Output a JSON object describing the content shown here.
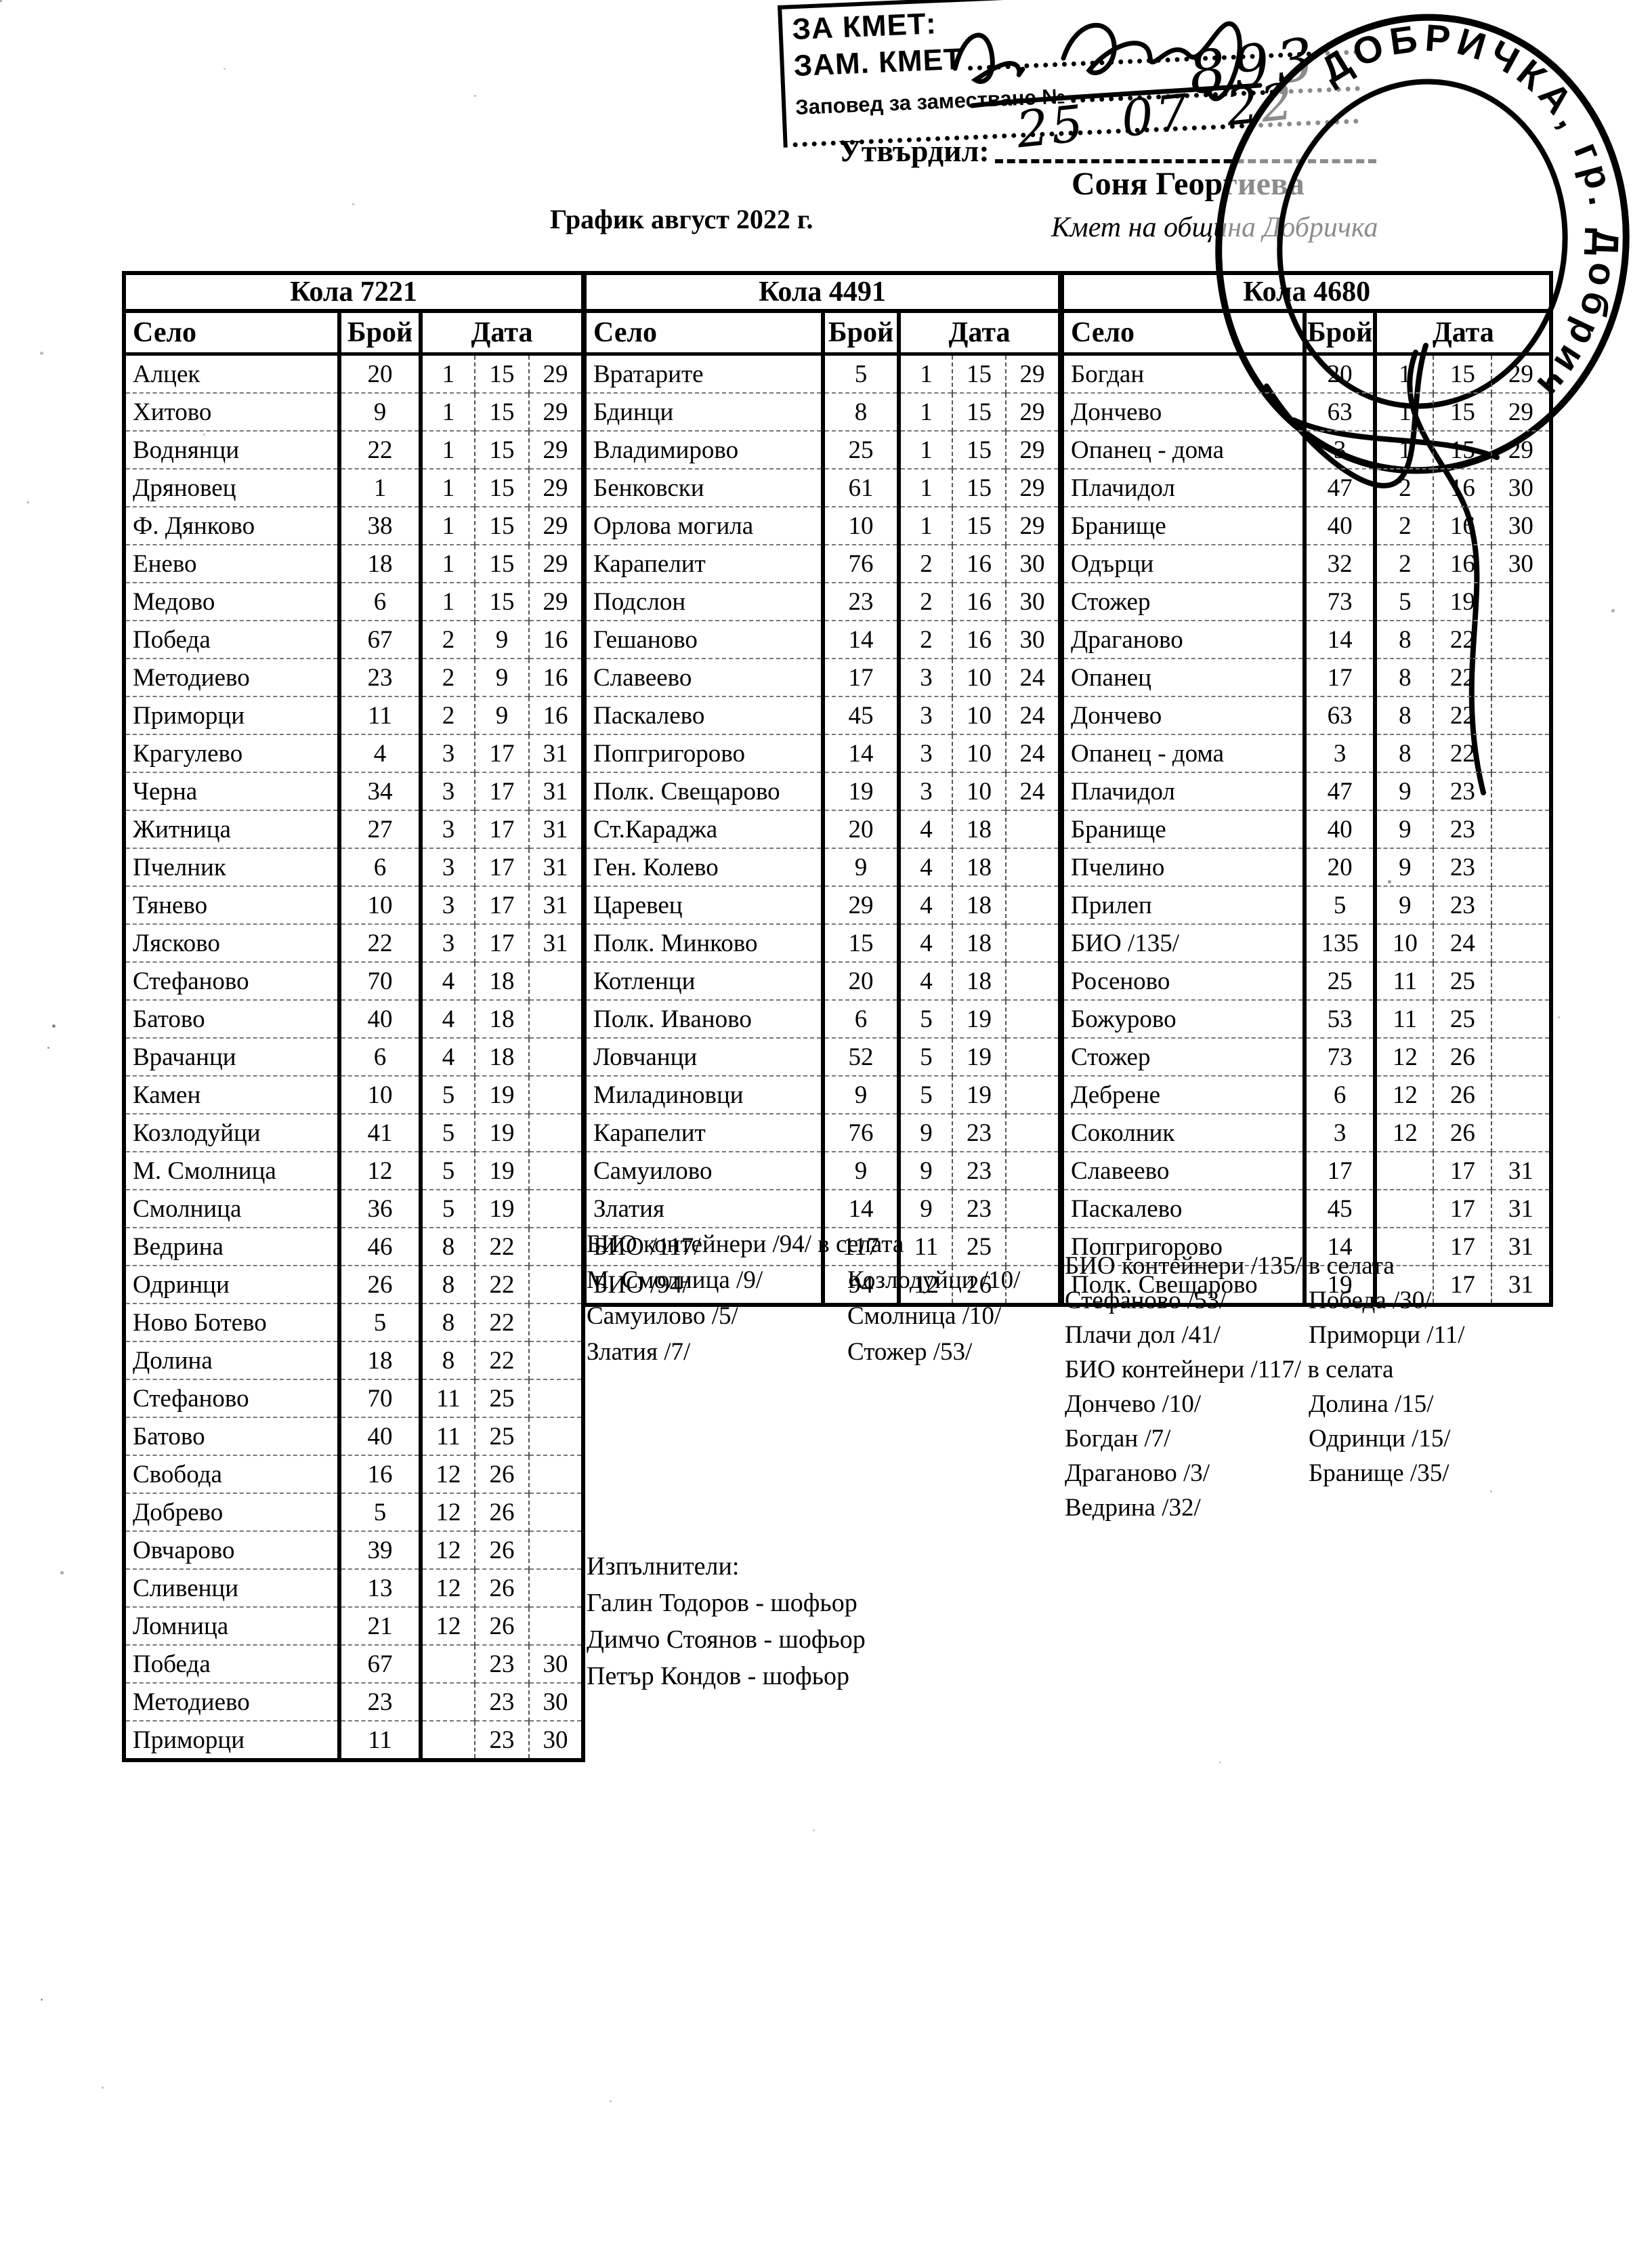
{
  "page": {
    "title": "График август 2022 г."
  },
  "approval": {
    "stamp_box": {
      "line1": "ЗА КМЕТ:",
      "line2": "ЗАМ. КМЕТ",
      "line3": "Заповед за заместване №",
      "handwritten_number": "893",
      "handwritten_date": "25 07 22"
    },
    "utvardil_label": "Утвърдил:",
    "approver_name": "Соня Георгиева",
    "approver_title": "Кмет  на община Добричка",
    "round_stamp_text": "ДОБРИЧКА, гр. Добрич"
  },
  "table_headers": {
    "village": "Село",
    "count": "Брой",
    "date": "Дата"
  },
  "tables": [
    {
      "name": "Кола 7221",
      "rows": [
        [
          "Алцек",
          "20",
          "1",
          "15",
          "29"
        ],
        [
          "Хитово",
          "9",
          "1",
          "15",
          "29"
        ],
        [
          "Воднянци",
          "22",
          "1",
          "15",
          "29"
        ],
        [
          "Дряновец",
          "1",
          "1",
          "15",
          "29"
        ],
        [
          "Ф. Дянково",
          "38",
          "1",
          "15",
          "29"
        ],
        [
          "Енево",
          "18",
          "1",
          "15",
          "29"
        ],
        [
          "Медово",
          "6",
          "1",
          "15",
          "29"
        ],
        [
          "Победа",
          "67",
          "2",
          "9",
          "16"
        ],
        [
          "Методиево",
          "23",
          "2",
          "9",
          "16"
        ],
        [
          "Приморци",
          "11",
          "2",
          "9",
          "16"
        ],
        [
          "Крагулево",
          "4",
          "3",
          "17",
          "31"
        ],
        [
          "Черна",
          "34",
          "3",
          "17",
          "31"
        ],
        [
          "Житница",
          "27",
          "3",
          "17",
          "31"
        ],
        [
          "Пчелник",
          "6",
          "3",
          "17",
          "31"
        ],
        [
          "Тянево",
          "10",
          "3",
          "17",
          "31"
        ],
        [
          "Лясково",
          "22",
          "3",
          "17",
          "31"
        ],
        [
          "Стефаново",
          "70",
          "4",
          "18",
          ""
        ],
        [
          "Батово",
          "40",
          "4",
          "18",
          ""
        ],
        [
          "Врачанци",
          "6",
          "4",
          "18",
          ""
        ],
        [
          "Камен",
          "10",
          "5",
          "19",
          ""
        ],
        [
          "Козлодуйци",
          "41",
          "5",
          "19",
          ""
        ],
        [
          "М. Смолница",
          "12",
          "5",
          "19",
          ""
        ],
        [
          "Смолница",
          "36",
          "5",
          "19",
          ""
        ],
        [
          "Ведрина",
          "46",
          "8",
          "22",
          ""
        ],
        [
          "Одринци",
          "26",
          "8",
          "22",
          ""
        ],
        [
          "Ново Ботево",
          "5",
          "8",
          "22",
          ""
        ],
        [
          "Долина",
          "18",
          "8",
          "22",
          ""
        ],
        [
          "Стефаново",
          "70",
          "11",
          "25",
          ""
        ],
        [
          "Батово",
          "40",
          "11",
          "25",
          ""
        ],
        [
          "Свобода",
          "16",
          "12",
          "26",
          ""
        ],
        [
          "Добрево",
          "5",
          "12",
          "26",
          ""
        ],
        [
          "Овчарово",
          "39",
          "12",
          "26",
          ""
        ],
        [
          "Сливенци",
          "13",
          "12",
          "26",
          ""
        ],
        [
          "Ломница",
          "21",
          "12",
          "26",
          ""
        ],
        [
          "Победа",
          "67",
          "",
          "23",
          "30"
        ],
        [
          "Методиево",
          "23",
          "",
          "23",
          "30"
        ],
        [
          "Приморци",
          "11",
          "",
          "23",
          "30"
        ]
      ]
    },
    {
      "name": "Кола 4491",
      "rows": [
        [
          "Вратарите",
          "5",
          "1",
          "15",
          "29"
        ],
        [
          "Бдинци",
          "8",
          "1",
          "15",
          "29"
        ],
        [
          "Владимирово",
          "25",
          "1",
          "15",
          "29"
        ],
        [
          "Бенковски",
          "61",
          "1",
          "15",
          "29"
        ],
        [
          "Орлова могила",
          "10",
          "1",
          "15",
          "29"
        ],
        [
          "Карапелит",
          "76",
          "2",
          "16",
          "30"
        ],
        [
          "Подслон",
          "23",
          "2",
          "16",
          "30"
        ],
        [
          "Гешаново",
          "14",
          "2",
          "16",
          "30"
        ],
        [
          "Славеево",
          "17",
          "3",
          "10",
          "24"
        ],
        [
          "Паскалево",
          "45",
          "3",
          "10",
          "24"
        ],
        [
          "Попгригорово",
          "14",
          "3",
          "10",
          "24"
        ],
        [
          "Полк. Свещарово",
          "19",
          "3",
          "10",
          "24"
        ],
        [
          "Ст.Караджа",
          "20",
          "4",
          "18",
          ""
        ],
        [
          "Ген. Колево",
          "9",
          "4",
          "18",
          ""
        ],
        [
          "Царевец",
          "29",
          "4",
          "18",
          ""
        ],
        [
          "Полк. Минково",
          "15",
          "4",
          "18",
          ""
        ],
        [
          "Котленци",
          "20",
          "4",
          "18",
          ""
        ],
        [
          "Полк. Иваново",
          "6",
          "5",
          "19",
          ""
        ],
        [
          "Ловчанци",
          "52",
          "5",
          "19",
          ""
        ],
        [
          "Миладиновци",
          "9",
          "5",
          "19",
          ""
        ],
        [
          "Карапелит",
          "76",
          "9",
          "23",
          ""
        ],
        [
          "Самуилово",
          "9",
          "9",
          "23",
          ""
        ],
        [
          "Златия",
          "14",
          "9",
          "23",
          ""
        ],
        [
          "БИО /117/",
          "117",
          "11",
          "25",
          ""
        ],
        [
          "БИО /94/",
          "94",
          "12",
          "26",
          ""
        ]
      ]
    },
    {
      "name": "Кола 4680",
      "rows": [
        [
          "Богдан",
          "20",
          "1",
          "15",
          "29"
        ],
        [
          "Дончево",
          "63",
          "1",
          "15",
          "29"
        ],
        [
          "Опанец - дома",
          "3",
          "1",
          "15",
          "29"
        ],
        [
          "Плачидол",
          "47",
          "2",
          "16",
          "30"
        ],
        [
          "Бранище",
          "40",
          "2",
          "16",
          "30"
        ],
        [
          "Одърци",
          "32",
          "2",
          "16",
          "30"
        ],
        [
          "Стожер",
          "73",
          "5",
          "19",
          ""
        ],
        [
          "Драганово",
          "14",
          "8",
          "22",
          ""
        ],
        [
          "Опанец",
          "17",
          "8",
          "22",
          ""
        ],
        [
          "Дончево",
          "63",
          "8",
          "22",
          ""
        ],
        [
          "Опанец - дома",
          "3",
          "8",
          "22",
          ""
        ],
        [
          "Плачидол",
          "47",
          "9",
          "23",
          ""
        ],
        [
          "Бранище",
          "40",
          "9",
          "23",
          ""
        ],
        [
          "Пчелино",
          "20",
          "9",
          "23",
          ""
        ],
        [
          "Прилеп",
          "5",
          "9",
          "23",
          ""
        ],
        [
          "БИО /135/",
          "135",
          "10",
          "24",
          ""
        ],
        [
          "Росеново",
          "25",
          "11",
          "25",
          ""
        ],
        [
          "Божурово",
          "53",
          "11",
          "25",
          ""
        ],
        [
          "Стожер",
          "73",
          "12",
          "26",
          ""
        ],
        [
          "Дебрене",
          "6",
          "12",
          "26",
          ""
        ],
        [
          "Соколник",
          "3",
          "12",
          "26",
          ""
        ],
        [
          "Славеево",
          "17",
          "",
          "17",
          "31"
        ],
        [
          "Паскалево",
          "45",
          "",
          "17",
          "31"
        ],
        [
          "Попгригорово",
          "14",
          "",
          "17",
          "31"
        ],
        [
          "Полк. Свещарово",
          "19",
          "",
          "17",
          "31"
        ]
      ]
    }
  ],
  "notes_middle": {
    "lines": [
      {
        "left": "БИО контейнери /94/ в селата",
        "right": ""
      },
      {
        "left": "М. Смолница /9/",
        "right": "Козлодуйци /10/"
      },
      {
        "left": "Самуилово /5/",
        "right": "Смолница /10/"
      },
      {
        "left": "Златия /7/",
        "right": "Стожер /53/"
      }
    ]
  },
  "notes_right": {
    "lines": [
      {
        "left": "БИО контейнери /135/ в селата",
        "right": ""
      },
      {
        "left": "Стефаново /53/",
        "right": "Победа /30/"
      },
      {
        "left": "Плачи дол /41/",
        "right": "Приморци /11/"
      },
      {
        "left": "БИО контейнери /117/ в селата",
        "right": ""
      },
      {
        "left": "Дончево /10/",
        "right": "Долина /15/"
      },
      {
        "left": "Богдан /7/",
        "right": "Одринци /15/"
      },
      {
        "left": "Драганово /3/",
        "right": "Бранище /35/"
      },
      {
        "left": "Ведрина /32/",
        "right": ""
      }
    ]
  },
  "executors": {
    "title": "Изпълнители:",
    "people": [
      "Галин Тодоров - шофьор",
      "Димчо Стоянов - шофьор",
      "Петър Кондов - шофьор"
    ]
  }
}
